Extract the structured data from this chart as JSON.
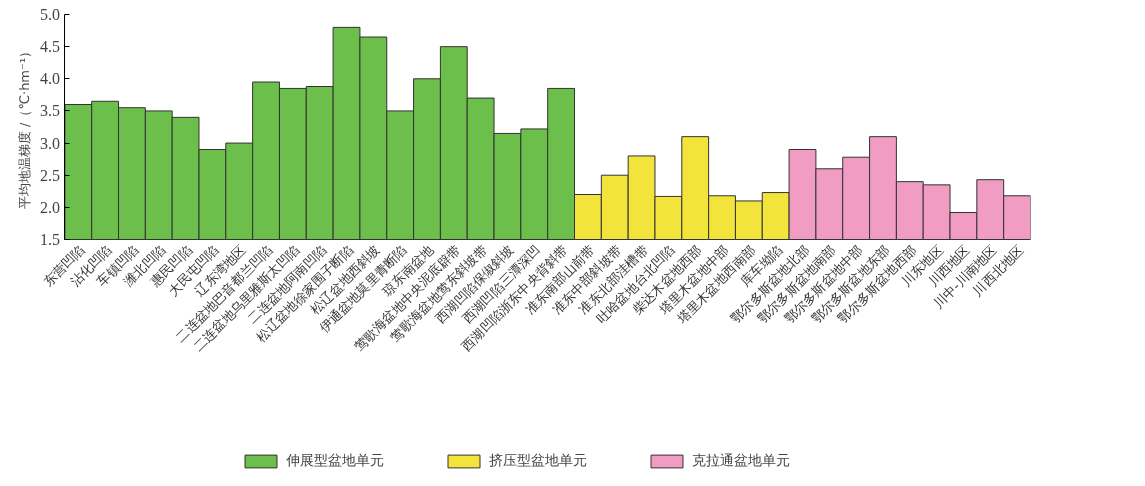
{
  "chart_data": {
    "type": "bar",
    "ylabel": "平均地温梯度 /（℃·hm⁻¹）",
    "categories": [
      "东营凹陷",
      "沾化凹陷",
      "车镇凹陷",
      "潍北凹陷",
      "惠民凹陷",
      "大民屯凹陷",
      "辽东湾地区",
      "二连盆地巴音都兰凹陷",
      "二连盆地乌里雅斯太凹陷",
      "二连盆地阿南凹陷",
      "松辽盆地徐家围子断陷",
      "松辽盆地西斜坡",
      "伊通盆地莫里青断陷",
      "琼东南盆地",
      "莺歌海盆地中央泥底辟带",
      "莺歌海盆地莺东斜坡带",
      "西湖凹陷保俶斜坡",
      "西湖凹陷三潭深凹",
      "西湖凹陷浙东中央背斜带",
      "准东南部山前带",
      "准东中部斜坡带",
      "准东北部洼槽带",
      "吐哈盆地台北凹陷",
      "柴达木盆地西部",
      "塔里木盆地中部",
      "塔里木盆地西南部",
      "库车坳陷",
      "鄂尔多斯盆地北部",
      "鄂尔多斯盆地南部",
      "鄂尔多斯盆地中部",
      "鄂尔多斯盆地东部",
      "鄂尔多斯盆地西部",
      "川东地区",
      "川西地区",
      "川中-川南地区",
      "川西北地区"
    ],
    "series": [
      {
        "name": "伸展型盆地单元",
        "color": "#6cbf4a",
        "values": [
          3.6,
          3.65,
          3.55,
          3.5,
          3.4,
          2.9,
          3.0,
          3.95,
          3.85,
          3.88,
          4.8,
          4.65,
          3.5,
          4.0,
          4.5,
          3.7,
          3.15,
          3.22,
          3.85,
          null,
          null,
          null,
          null,
          null,
          null,
          null,
          null,
          null,
          null,
          null,
          null,
          null,
          null,
          null,
          null,
          null
        ]
      },
      {
        "name": "挤压型盆地单元",
        "color": "#f2e43a",
        "values": [
          null,
          null,
          null,
          null,
          null,
          null,
          null,
          null,
          null,
          null,
          null,
          null,
          null,
          null,
          null,
          null,
          null,
          null,
          null,
          2.2,
          2.5,
          2.8,
          2.17,
          3.1,
          2.18,
          2.1,
          2.23,
          null,
          null,
          null,
          null,
          null,
          null,
          null,
          null,
          null
        ]
      },
      {
        "name": "克拉通盆地单元",
        "color": "#f09cc3",
        "values": [
          null,
          null,
          null,
          null,
          null,
          null,
          null,
          null,
          null,
          null,
          null,
          null,
          null,
          null,
          null,
          null,
          null,
          null,
          null,
          null,
          null,
          null,
          null,
          null,
          null,
          null,
          null,
          2.9,
          2.6,
          2.78,
          3.1,
          2.4,
          2.35,
          1.92,
          2.43,
          2.18
        ]
      }
    ],
    "ylim": [
      1.5,
      5.0
    ],
    "yticks": [
      1.5,
      {
        "value": 2,
        "label": "2.0"
      },
      2.5,
      {
        "value": 3,
        "label": "3.0"
      },
      3.5,
      {
        "value": 4,
        "label": "4.0"
      },
      4.5,
      {
        "value": 5,
        "label": "5.0"
      }
    ],
    "grid": false,
    "legend": "bottom"
  }
}
